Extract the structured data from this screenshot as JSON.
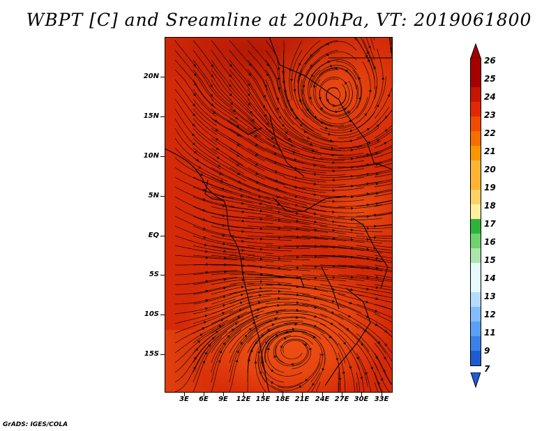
{
  "title": "WBPT [C] and Sreamline at 200hPa, VT: 2019061800",
  "footer": "GrADS: IGES/COLA",
  "lat_labels": [
    "20N",
    "15N",
    "10N",
    "5N",
    "EQ",
    "5S",
    "10S",
    "15S"
  ],
  "lon_labels": [
    "3E",
    "6E",
    "9E",
    "12E",
    "15E",
    "18E",
    "21E",
    "24E",
    "27E",
    "30E",
    "33E"
  ],
  "colorbar": {
    "labels": [
      "26",
      "25",
      "24",
      "23",
      "22",
      "21",
      "20",
      "19",
      "18",
      "17",
      "16",
      "15",
      "14",
      "13",
      "12",
      "11",
      "9",
      "7"
    ],
    "colors": [
      "#a50000",
      "#c81400",
      "#e12800",
      "#f04b00",
      "#f56e00",
      "#fa9600",
      "#fcb432",
      "#fed264",
      "#fff0a0",
      "#2db43c",
      "#6ed26e",
      "#aae6aa",
      "#e6faff",
      "#b4dcff",
      "#82beff",
      "#5aa0f5",
      "#3c82e6",
      "#1e5ad2"
    ],
    "top_arrow_color": "#a50000",
    "bottom_arrow_color": "#1e5ad2"
  },
  "map": {
    "background_color": "#d42a08",
    "high_color": "#b81c06",
    "warm_color": "#e84512",
    "line_color": "#000000"
  }
}
